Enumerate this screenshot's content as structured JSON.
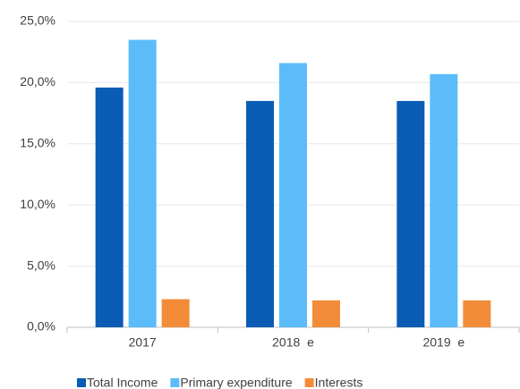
{
  "chart_data": {
    "type": "bar",
    "categories": [
      "2017",
      "2018  e",
      "2019  e"
    ],
    "series": [
      {
        "name": "Total Income",
        "color": "#0b5cb5",
        "values": [
          19.6,
          18.5,
          18.5
        ]
      },
      {
        "name": "Primary expenditure",
        "color": "#5bbcf9",
        "values": [
          23.5,
          21.6,
          20.7
        ]
      },
      {
        "name": "Interests",
        "color": "#f28c38",
        "values": [
          2.3,
          2.2,
          2.2
        ]
      }
    ],
    "ylim": [
      0,
      25
    ],
    "yticks": [
      {
        "value": 0,
        "label": "0,0%"
      },
      {
        "value": 5,
        "label": "5,0%"
      },
      {
        "value": 10,
        "label": "10,0%"
      },
      {
        "value": 15,
        "label": "15,0%"
      },
      {
        "value": 20,
        "label": "20,0%"
      },
      {
        "value": 25,
        "label": "25,0%"
      }
    ],
    "grid": true,
    "legend": "bottom"
  }
}
